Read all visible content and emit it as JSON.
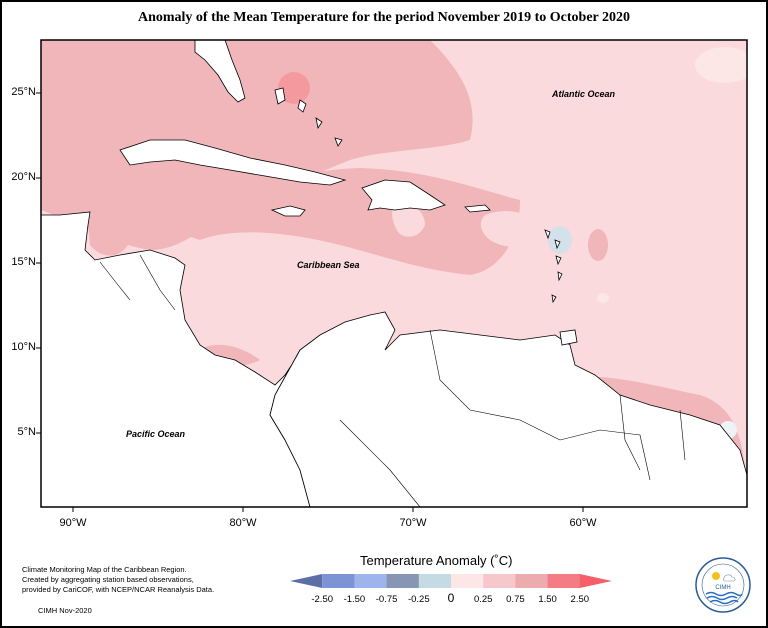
{
  "title": "Anomaly of the Mean Temperature for the period November 2019 to October 2020",
  "map_labels": {
    "atlantic": "Atlantic Ocean",
    "caribbean": "Caribbean Sea",
    "pacific": "Pacific Ocean"
  },
  "lat_ticks": [
    "25°N",
    "20°N",
    "15°N",
    "10°N",
    "5°N"
  ],
  "lon_ticks": [
    "90°W",
    "80°W",
    "70°W",
    "60°W"
  ],
  "credit": {
    "line1": "Climate Monitoring Map of the Caribbean Region.",
    "line2": "Created by aggregating station based observations,",
    "line3": "provided by CariCOF, with NCEP/NCAR Reanalysis Data.",
    "date": "CIMH Nov-2020"
  },
  "legend": {
    "title": "Temperature Anomaly (˚C)",
    "ticks": [
      "-2.50",
      "-1.50",
      "-0.75",
      "-0.25",
      "0",
      "0.25",
      "0.75",
      "1.50",
      "2.50"
    ],
    "colors": [
      "#5b6fa6",
      "#7c93d4",
      "#9fb3ec",
      "#8696b4",
      "#c5dbe4",
      "#fde6e6",
      "#f6c8cc",
      "#ecabae",
      "#f47c85",
      "#f55f69"
    ]
  },
  "logo_text": "CIMH",
  "colors": {
    "land": "#ffffff",
    "coast": "#000000",
    "anomaly_low": "#fbdadd",
    "anomaly_mid": "#f0b6ba",
    "anomaly_high": "#f49a9f",
    "anomaly_cool": "#d3e2ea"
  }
}
